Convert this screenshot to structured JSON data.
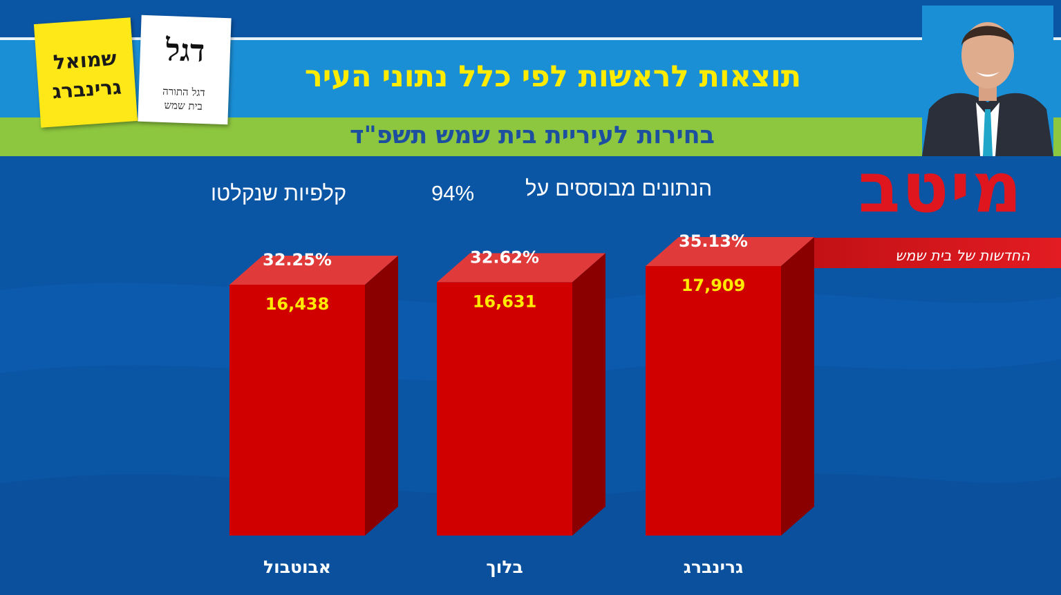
{
  "header": {
    "title": "תוצאות לראשות לפי כלל נתוני העיר",
    "subtitle": "בחירות לעיריית בית שמש תשפ\"ד"
  },
  "note": {
    "based_on": "הנתונים מבוססים על",
    "percent": "94%",
    "ballots": "קלפיות שנקלטו"
  },
  "logo_cards": {
    "yellow_line1": "שמואל",
    "yellow_line2": "גרינברג",
    "white_big": "דגל",
    "white_line1": "דגל התורה",
    "white_line2": "בית שמש"
  },
  "brand": {
    "name": "מיטב",
    "tagline": "החדשות של בית שמש"
  },
  "colors": {
    "background": "#0b55a5",
    "header": "#1b8fd6",
    "green_band": "#8dc63f",
    "title": "#ffec00",
    "bar_front": "#d10000",
    "bar_top": "#e03a3a",
    "bar_side": "#8a0000"
  },
  "chart_data": {
    "type": "bar",
    "categories": [
      "אבוטבול",
      "בלוך",
      "גרינברג"
    ],
    "values": [
      16438,
      16631,
      17909
    ],
    "value_labels": [
      "16,438",
      "16,631",
      "17,909"
    ],
    "percent_labels": [
      "32.25%",
      "32.62%",
      "35.13%"
    ],
    "percents": [
      32.25,
      32.62,
      35.13
    ],
    "title": "",
    "xlabel": "",
    "ylabel": "",
    "grid": false,
    "legend": "none"
  }
}
